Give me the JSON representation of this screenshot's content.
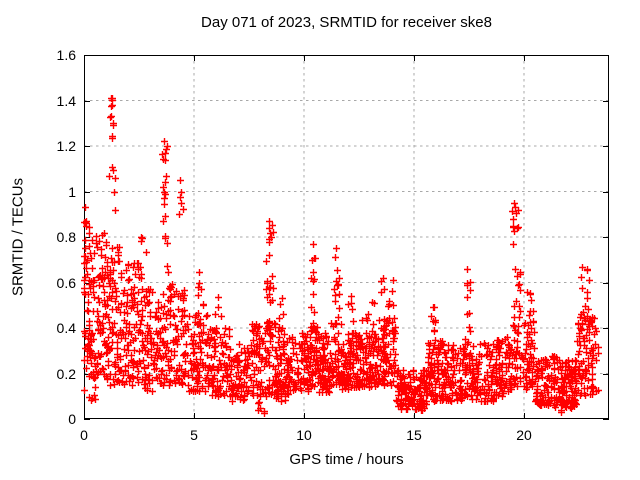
{
  "chart_data": {
    "type": "scatter",
    "title": "Day 071 of 2023, SRMTID for receiver ske8",
    "xlabel": "GPS time / hours",
    "ylabel": "SRMTID / TECUs",
    "xlim": [
      0,
      23.864
    ],
    "ylim": [
      0,
      1.6
    ],
    "xticks": [
      0,
      5,
      10,
      15,
      20
    ],
    "xtick_labels": [
      "0",
      "5",
      "10",
      "15",
      "20"
    ],
    "yticks": [
      0,
      0.2,
      0.4,
      0.6,
      0.8,
      1.0,
      1.2,
      1.4,
      1.6
    ],
    "ytick_labels": [
      "0",
      "0.2",
      "0.4",
      "0.6",
      "0.8",
      "1",
      "1.2",
      "1.4",
      "1.6"
    ],
    "grid": true,
    "legend": "none",
    "marker": "plus",
    "marker_color": "#ff0000",
    "grid_color": "#a8a8a8",
    "axis_color": "#000000",
    "background_color": "#ffffff",
    "seed": 20230711,
    "segment_format": [
      "x_start_hours",
      "x_end_hours",
      "n_points",
      "y_min_tecus",
      "y_max_tecus",
      "bias_toward_ymin"
    ],
    "density_segments": [
      [
        0.0,
        0.3,
        46,
        0.22,
        0.92,
        1.0
      ],
      [
        0.0,
        0.55,
        22,
        0.08,
        0.4,
        1.2
      ],
      [
        0.3,
        1.0,
        85,
        0.18,
        0.82,
        1.2
      ],
      [
        1.0,
        1.6,
        75,
        0.15,
        0.76,
        1.2
      ],
      [
        1.15,
        1.45,
        6,
        0.88,
        1.16,
        1.0
      ],
      [
        1.2,
        1.35,
        5,
        1.22,
        1.35,
        1.0
      ],
      [
        1.22,
        1.3,
        3,
        1.37,
        1.42,
        1.0
      ],
      [
        1.6,
        2.6,
        105,
        0.15,
        0.7,
        1.3
      ],
      [
        2.4,
        2.9,
        8,
        0.55,
        0.82,
        1.1
      ],
      [
        2.6,
        3.5,
        85,
        0.12,
        0.58,
        1.35
      ],
      [
        3.5,
        4.0,
        55,
        0.15,
        0.6,
        1.3
      ],
      [
        3.55,
        3.85,
        7,
        0.6,
        0.9,
        1.0
      ],
      [
        3.55,
        3.8,
        8,
        0.85,
        1.22,
        1.0
      ],
      [
        4.0,
        4.6,
        55,
        0.15,
        0.58,
        1.35
      ],
      [
        4.3,
        4.5,
        4,
        0.85,
        1.06,
        1.0
      ],
      [
        4.6,
        5.6,
        85,
        0.12,
        0.46,
        1.35
      ],
      [
        5.15,
        5.45,
        8,
        0.42,
        0.66,
        1.0
      ],
      [
        5.6,
        6.6,
        85,
        0.1,
        0.4,
        1.4
      ],
      [
        5.9,
        6.3,
        5,
        0.4,
        0.56,
        1.0
      ],
      [
        6.6,
        7.6,
        85,
        0.08,
        0.33,
        1.35
      ],
      [
        7.6,
        8.1,
        48,
        0.1,
        0.42,
        1.25
      ],
      [
        7.9,
        8.2,
        6,
        0.01,
        0.08,
        1.0
      ],
      [
        8.1,
        8.7,
        52,
        0.1,
        0.46,
        1.15
      ],
      [
        8.25,
        8.6,
        26,
        0.35,
        0.87,
        1.05
      ],
      [
        8.7,
        9.3,
        65,
        0.08,
        0.36,
        1.25
      ],
      [
        8.8,
        9.1,
        9,
        0.35,
        0.56,
        1.0
      ],
      [
        9.3,
        10.2,
        78,
        0.12,
        0.38,
        1.35
      ],
      [
        10.2,
        10.6,
        42,
        0.12,
        0.42,
        1.2
      ],
      [
        10.3,
        10.55,
        15,
        0.35,
        0.78,
        1.0
      ],
      [
        10.6,
        11.2,
        70,
        0.12,
        0.38,
        1.35
      ],
      [
        11.2,
        11.7,
        48,
        0.15,
        0.44,
        1.2
      ],
      [
        11.3,
        11.6,
        15,
        0.4,
        0.76,
        1.0
      ],
      [
        11.7,
        12.4,
        80,
        0.13,
        0.38,
        1.3
      ],
      [
        12.0,
        12.25,
        5,
        0.4,
        0.57,
        1.0
      ],
      [
        12.4,
        13.4,
        105,
        0.14,
        0.38,
        1.3
      ],
      [
        12.6,
        13.3,
        8,
        0.38,
        0.52,
        1.0
      ],
      [
        13.4,
        14.2,
        85,
        0.15,
        0.45,
        1.2
      ],
      [
        13.5,
        14.1,
        10,
        0.45,
        0.63,
        1.0
      ],
      [
        14.2,
        15.6,
        150,
        0.04,
        0.22,
        1.15
      ],
      [
        15.6,
        16.4,
        85,
        0.08,
        0.36,
        1.3
      ],
      [
        15.7,
        16.1,
        8,
        0.36,
        0.5,
        1.0
      ],
      [
        16.4,
        17.2,
        75,
        0.08,
        0.33,
        1.3
      ],
      [
        17.2,
        17.6,
        38,
        0.1,
        0.36,
        1.2
      ],
      [
        17.3,
        17.55,
        9,
        0.36,
        0.66,
        1.0
      ],
      [
        17.6,
        18.6,
        85,
        0.08,
        0.34,
        1.35
      ],
      [
        18.6,
        19.3,
        66,
        0.1,
        0.36,
        1.3
      ],
      [
        19.3,
        19.95,
        50,
        0.12,
        0.46,
        1.1
      ],
      [
        19.4,
        19.85,
        13,
        0.46,
        0.85,
        1.0
      ],
      [
        19.45,
        19.75,
        8,
        0.78,
        0.95,
        1.0
      ],
      [
        19.95,
        20.5,
        52,
        0.12,
        0.44,
        1.2
      ],
      [
        20.1,
        20.4,
        7,
        0.44,
        0.56,
        1.0
      ],
      [
        20.5,
        21.6,
        105,
        0.06,
        0.28,
        1.25
      ],
      [
        21.4,
        21.7,
        3,
        0.02,
        0.07,
        1.0
      ],
      [
        21.6,
        22.4,
        95,
        0.05,
        0.26,
        1.2
      ],
      [
        22.4,
        23.1,
        75,
        0.1,
        0.46,
        1.15
      ],
      [
        22.55,
        23.0,
        13,
        0.46,
        0.67,
        1.0
      ],
      [
        23.1,
        23.35,
        22,
        0.12,
        0.46,
        1.1
      ]
    ],
    "peak_points": [
      [
        0.05,
        0.93
      ],
      [
        0.09,
        0.86
      ],
      [
        1.24,
        1.41
      ],
      [
        1.29,
        1.41
      ],
      [
        1.26,
        1.38
      ],
      [
        1.22,
        1.33
      ],
      [
        3.62,
        1.22
      ],
      [
        3.67,
        1.17
      ],
      [
        3.6,
        1.02
      ],
      [
        3.64,
        1.0
      ],
      [
        3.69,
        0.99
      ],
      [
        3.62,
        0.97
      ],
      [
        4.38,
        1.05
      ],
      [
        4.42,
        1.0
      ],
      [
        8.42,
        0.87
      ],
      [
        10.4,
        0.77
      ],
      [
        11.44,
        0.75
      ],
      [
        17.4,
        0.66
      ],
      [
        19.55,
        0.95
      ],
      [
        19.6,
        0.93
      ],
      [
        19.5,
        0.88
      ],
      [
        22.85,
        0.66
      ]
    ]
  }
}
